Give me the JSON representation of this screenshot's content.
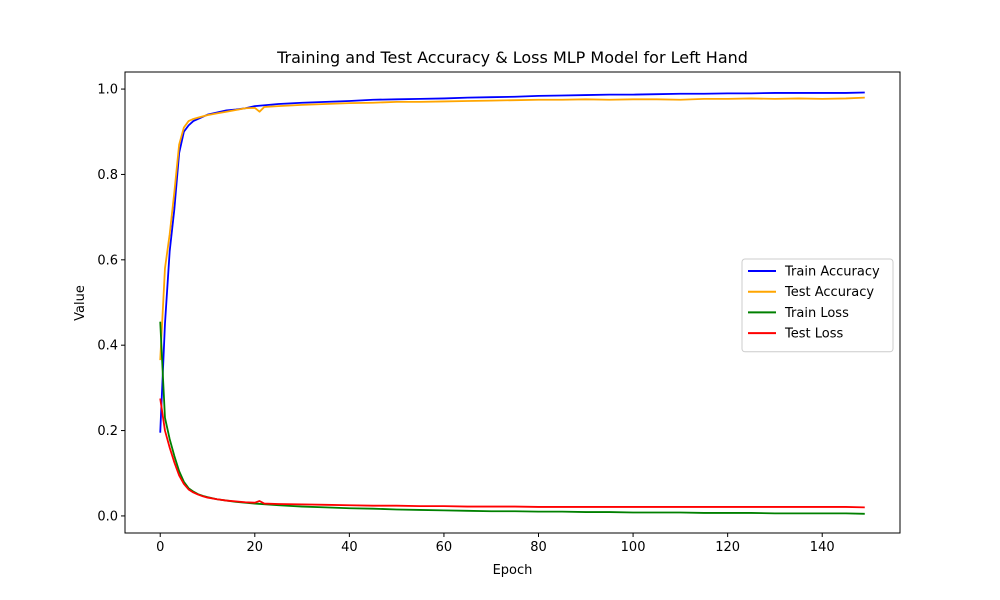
{
  "chart_data": {
    "type": "line",
    "title": "Training and Test Accuracy & Loss MLP Model for Left Hand",
    "xlabel": "Epoch",
    "ylabel": "Value",
    "xlim": [
      -7.45,
      156.45
    ],
    "ylim": [
      -0.04,
      1.04
    ],
    "x_ticks": [
      0,
      20,
      40,
      60,
      80,
      100,
      120,
      140
    ],
    "y_ticks": [
      0.0,
      0.2,
      0.4,
      0.6,
      0.8,
      1.0
    ],
    "x_tick_labels": [
      "0",
      "20",
      "40",
      "60",
      "80",
      "100",
      "120",
      "140"
    ],
    "y_tick_labels": [
      "0.0",
      "0.2",
      "0.4",
      "0.6",
      "0.8",
      "1.0"
    ],
    "legend_position": "center-right",
    "grid": false,
    "series": [
      {
        "name": "Train Accuracy",
        "color": "#0000ff",
        "x": [
          0,
          1,
          2,
          3,
          4,
          5,
          6,
          7,
          8,
          9,
          10,
          12,
          14,
          16,
          18,
          20,
          25,
          30,
          35,
          40,
          45,
          50,
          55,
          60,
          65,
          70,
          75,
          80,
          85,
          90,
          95,
          100,
          105,
          110,
          115,
          120,
          125,
          130,
          135,
          140,
          145,
          149
        ],
        "y": [
          0.195,
          0.45,
          0.62,
          0.72,
          0.85,
          0.9,
          0.915,
          0.925,
          0.93,
          0.935,
          0.94,
          0.945,
          0.95,
          0.952,
          0.955,
          0.96,
          0.965,
          0.968,
          0.97,
          0.972,
          0.975,
          0.976,
          0.977,
          0.978,
          0.98,
          0.981,
          0.982,
          0.984,
          0.985,
          0.986,
          0.987,
          0.987,
          0.988,
          0.989,
          0.989,
          0.99,
          0.99,
          0.991,
          0.991,
          0.991,
          0.991,
          0.992
        ]
      },
      {
        "name": "Test Accuracy",
        "color": "#ffa500",
        "x": [
          0,
          1,
          2,
          3,
          4,
          5,
          6,
          7,
          8,
          9,
          10,
          12,
          14,
          16,
          18,
          20,
          21,
          22,
          25,
          30,
          35,
          40,
          45,
          50,
          55,
          60,
          65,
          70,
          75,
          80,
          85,
          90,
          95,
          100,
          105,
          110,
          115,
          120,
          125,
          130,
          135,
          140,
          145,
          149
        ],
        "y": [
          0.365,
          0.58,
          0.66,
          0.76,
          0.87,
          0.91,
          0.925,
          0.93,
          0.933,
          0.936,
          0.939,
          0.943,
          0.947,
          0.951,
          0.955,
          0.956,
          0.947,
          0.958,
          0.96,
          0.963,
          0.965,
          0.967,
          0.968,
          0.97,
          0.97,
          0.971,
          0.972,
          0.973,
          0.974,
          0.975,
          0.975,
          0.976,
          0.975,
          0.976,
          0.976,
          0.975,
          0.977,
          0.977,
          0.978,
          0.977,
          0.978,
          0.977,
          0.978,
          0.98
        ]
      },
      {
        "name": "Train Loss",
        "color": "#008000",
        "x": [
          0,
          1,
          2,
          3,
          4,
          5,
          6,
          7,
          8,
          9,
          10,
          12,
          14,
          16,
          18,
          20,
          25,
          30,
          35,
          40,
          45,
          50,
          55,
          60,
          65,
          70,
          75,
          80,
          85,
          90,
          95,
          100,
          105,
          110,
          115,
          120,
          125,
          130,
          135,
          140,
          145,
          149
        ],
        "y": [
          0.455,
          0.23,
          0.18,
          0.14,
          0.105,
          0.08,
          0.065,
          0.057,
          0.051,
          0.047,
          0.044,
          0.039,
          0.036,
          0.033,
          0.031,
          0.029,
          0.025,
          0.022,
          0.02,
          0.018,
          0.017,
          0.015,
          0.014,
          0.013,
          0.012,
          0.011,
          0.011,
          0.01,
          0.01,
          0.009,
          0.009,
          0.008,
          0.008,
          0.008,
          0.007,
          0.007,
          0.007,
          0.006,
          0.006,
          0.006,
          0.006,
          0.005
        ]
      },
      {
        "name": "Test Loss",
        "color": "#ff0000",
        "x": [
          0,
          1,
          2,
          3,
          4,
          5,
          6,
          7,
          8,
          9,
          10,
          12,
          14,
          16,
          18,
          20,
          21,
          22,
          25,
          30,
          35,
          40,
          45,
          50,
          55,
          60,
          65,
          70,
          75,
          80,
          85,
          90,
          95,
          100,
          105,
          110,
          115,
          120,
          125,
          130,
          135,
          140,
          145,
          149
        ],
        "y": [
          0.275,
          0.2,
          0.16,
          0.125,
          0.095,
          0.075,
          0.062,
          0.055,
          0.05,
          0.046,
          0.043,
          0.039,
          0.036,
          0.034,
          0.032,
          0.031,
          0.035,
          0.029,
          0.028,
          0.027,
          0.026,
          0.025,
          0.024,
          0.024,
          0.023,
          0.023,
          0.022,
          0.022,
          0.022,
          0.021,
          0.021,
          0.021,
          0.021,
          0.021,
          0.021,
          0.021,
          0.021,
          0.021,
          0.021,
          0.021,
          0.021,
          0.021,
          0.021,
          0.02
        ]
      }
    ]
  }
}
